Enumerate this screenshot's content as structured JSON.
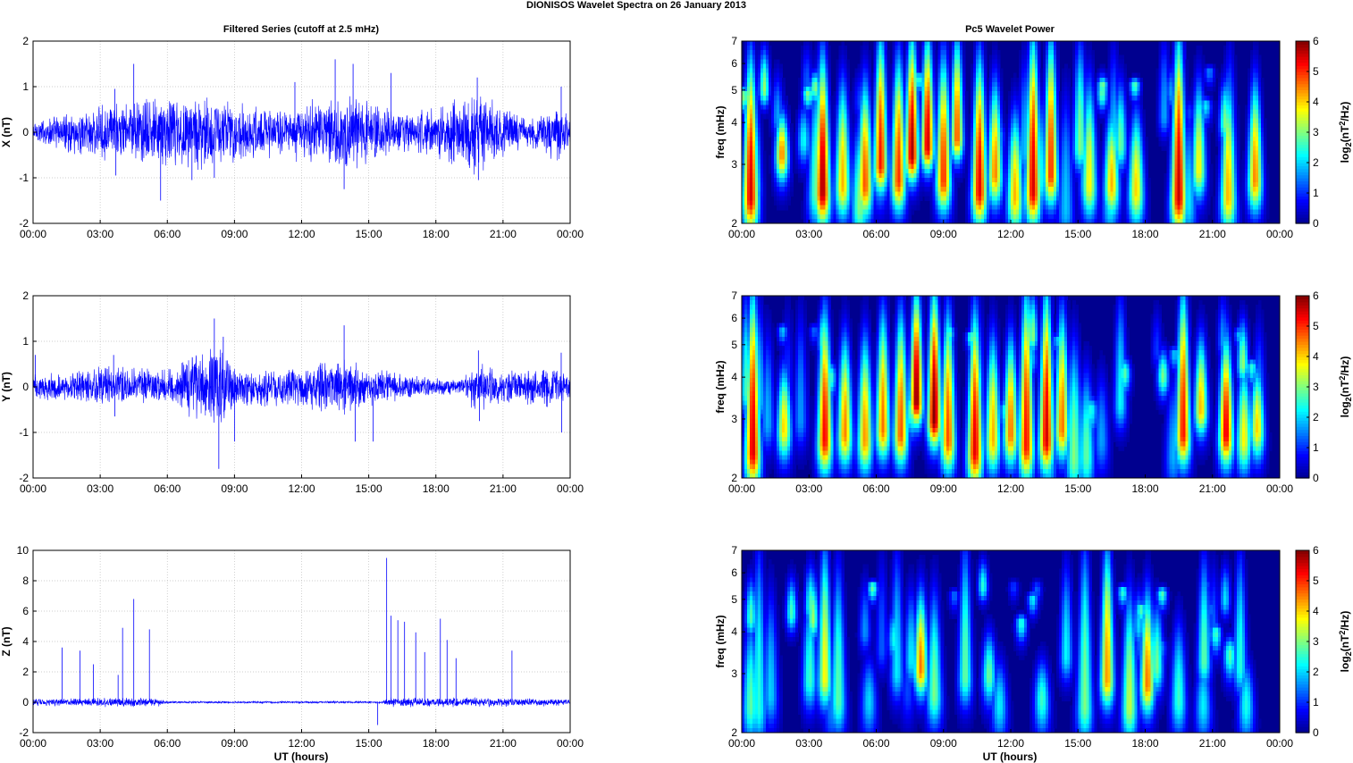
{
  "figure_title": "DIONISOS Wavelet Spectra on 26 January   2013",
  "colors": {
    "series": "#0000ff",
    "axis": "#000000",
    "grid": "#bfbfbf",
    "spectrum_background": "#00008f",
    "colormap": [
      "#00008f",
      "#0000ff",
      "#0080ff",
      "#00ffff",
      "#80ff80",
      "#ffff00",
      "#ff8000",
      "#ff0000",
      "#800000"
    ]
  },
  "chart_data": [
    {
      "type": "line",
      "title": "Filtered Series (cutoff at 2.5 mHz)",
      "xlabel": "",
      "ylabel": "X (nT)",
      "x_ticks": [
        "00:00",
        "03:00",
        "06:00",
        "09:00",
        "12:00",
        "15:00",
        "18:00",
        "21:00",
        "00:00"
      ],
      "xlim": [
        0,
        24
      ],
      "ylim": [
        -2,
        2
      ],
      "y_ticks": [
        "-2",
        "-1",
        "0",
        "1",
        "2"
      ],
      "grid": true,
      "envelope_amplitude": [
        {
          "t": 0,
          "a": 0.3
        },
        {
          "t": 3.5,
          "a": 0.7
        },
        {
          "t": 6,
          "a": 0.9
        },
        {
          "t": 8,
          "a": 0.9
        },
        {
          "t": 10,
          "a": 0.6
        },
        {
          "t": 14.5,
          "a": 0.85
        },
        {
          "t": 17,
          "a": 0.45
        },
        {
          "t": 19.8,
          "a": 1.0
        },
        {
          "t": 22,
          "a": 0.35
        },
        {
          "t": 23.6,
          "a": 0.7
        },
        {
          "t": 24,
          "a": 0.25
        }
      ],
      "spikes": [
        {
          "t": 3.65,
          "v": 0.95
        },
        {
          "t": 3.7,
          "v": -0.95
        },
        {
          "t": 4.5,
          "v": 1.5
        },
        {
          "t": 5.7,
          "v": -1.5
        },
        {
          "t": 7.1,
          "v": -1.05
        },
        {
          "t": 8.1,
          "v": -1.0
        },
        {
          "t": 11.7,
          "v": 1.1
        },
        {
          "t": 13.5,
          "v": 1.6
        },
        {
          "t": 14.3,
          "v": 1.5
        },
        {
          "t": 13.9,
          "v": -1.25
        },
        {
          "t": 16,
          "v": 1.3
        },
        {
          "t": 19.85,
          "v": 1.2
        },
        {
          "t": 19.9,
          "v": -1.05
        },
        {
          "t": 23.6,
          "v": 1.0
        }
      ]
    },
    {
      "type": "heatmap",
      "title": "Pc5 Wavelet Power",
      "xlabel": "",
      "ylabel": "freq (mHz)",
      "x_ticks": [
        "00:00",
        "03:00",
        "06:00",
        "09:00",
        "12:00",
        "15:00",
        "18:00",
        "21:00",
        "00:00"
      ],
      "xlim": [
        0,
        24
      ],
      "ylim_mHz": [
        2,
        7
      ],
      "y_ticks": [
        "2",
        "3",
        "4",
        "5",
        "6",
        "7"
      ],
      "y_scale": "log",
      "colorbar_label": "log2(nT2/Hz)",
      "colorbar_ticks": [
        "0",
        "1",
        "2",
        "3",
        "4",
        "5",
        "6"
      ],
      "colorbar_range": [
        0,
        6
      ],
      "blobs": [
        {
          "t": 0.4,
          "f": 2.4,
          "p": 5.5,
          "ft": 6
        },
        {
          "t": 1.8,
          "f": 3.2,
          "p": 4.5,
          "ft": 4
        },
        {
          "t": 3.6,
          "f": 2.5,
          "p": 5.8,
          "ft": 6
        },
        {
          "t": 4.5,
          "f": 2.6,
          "p": 4.2,
          "ft": 5
        },
        {
          "t": 5.5,
          "f": 2.6,
          "p": 4.8,
          "ft": 5
        },
        {
          "t": 6.2,
          "f": 3.0,
          "p": 5.2,
          "ft": 7
        },
        {
          "t": 7.0,
          "f": 2.7,
          "p": 5.0,
          "ft": 6
        },
        {
          "t": 7.6,
          "f": 3.2,
          "p": 5.8,
          "ft": 7
        },
        {
          "t": 8.3,
          "f": 3.4,
          "p": 5.6,
          "ft": 7
        },
        {
          "t": 9.0,
          "f": 2.7,
          "p": 5.0,
          "ft": 6
        },
        {
          "t": 9.6,
          "f": 3.6,
          "p": 4.8,
          "ft": 7
        },
        {
          "t": 10.6,
          "f": 2.5,
          "p": 5.4,
          "ft": 6
        },
        {
          "t": 11.3,
          "f": 2.8,
          "p": 4.5,
          "ft": 5
        },
        {
          "t": 12.2,
          "f": 2.4,
          "p": 4.2,
          "ft": 4
        },
        {
          "t": 13.0,
          "f": 2.5,
          "p": 5.5,
          "ft": 7
        },
        {
          "t": 13.8,
          "f": 2.8,
          "p": 5.0,
          "ft": 7
        },
        {
          "t": 15.5,
          "f": 2.6,
          "p": 3.8,
          "ft": 5
        },
        {
          "t": 16.5,
          "f": 2.6,
          "p": 4.2,
          "ft": 4
        },
        {
          "t": 17.6,
          "f": 2.5,
          "p": 4.0,
          "ft": 4
        },
        {
          "t": 19.5,
          "f": 2.4,
          "p": 5.6,
          "ft": 7
        },
        {
          "t": 20.4,
          "f": 2.9,
          "p": 3.8,
          "ft": 5
        },
        {
          "t": 21.7,
          "f": 2.4,
          "p": 4.2,
          "ft": 5
        },
        {
          "t": 22.9,
          "f": 2.7,
          "p": 4.5,
          "ft": 5
        }
      ]
    },
    {
      "type": "line",
      "title": "",
      "xlabel": "",
      "ylabel": "Y (nT)",
      "x_ticks": [
        "00:00",
        "03:00",
        "06:00",
        "09:00",
        "12:00",
        "15:00",
        "18:00",
        "21:00",
        "00:00"
      ],
      "xlim": [
        0,
        24
      ],
      "ylim": [
        -2,
        2
      ],
      "y_ticks": [
        "-2",
        "-1",
        "0",
        "1",
        "2"
      ],
      "grid": true,
      "envelope_amplitude": [
        {
          "t": 0,
          "a": 0.3
        },
        {
          "t": 3.5,
          "a": 0.5
        },
        {
          "t": 6,
          "a": 0.45
        },
        {
          "t": 8.2,
          "a": 1.1
        },
        {
          "t": 9,
          "a": 0.5
        },
        {
          "t": 12,
          "a": 0.45
        },
        {
          "t": 13.8,
          "a": 0.7
        },
        {
          "t": 16,
          "a": 0.35
        },
        {
          "t": 19,
          "a": 0.15
        },
        {
          "t": 19.8,
          "a": 0.6
        },
        {
          "t": 21,
          "a": 0.4
        },
        {
          "t": 23.5,
          "a": 0.5
        },
        {
          "t": 24,
          "a": 0.25
        }
      ],
      "spikes": [
        {
          "t": 0.1,
          "v": 0.7
        },
        {
          "t": 3.6,
          "v": 0.7
        },
        {
          "t": 3.65,
          "v": -0.65
        },
        {
          "t": 8.1,
          "v": 1.5
        },
        {
          "t": 8.3,
          "v": -1.8
        },
        {
          "t": 8.5,
          "v": 1.1
        },
        {
          "t": 9.0,
          "v": -1.2
        },
        {
          "t": 13.9,
          "v": 1.35
        },
        {
          "t": 14.4,
          "v": -1.2
        },
        {
          "t": 15.2,
          "v": -1.2
        },
        {
          "t": 19.9,
          "v": 0.8
        },
        {
          "t": 19.95,
          "v": -0.75
        },
        {
          "t": 23.6,
          "v": 0.75
        },
        {
          "t": 23.62,
          "v": -1.0
        }
      ]
    },
    {
      "type": "heatmap",
      "title": "",
      "xlabel": "",
      "ylabel": "freq (mHz)",
      "x_ticks": [
        "00:00",
        "03:00",
        "06:00",
        "09:00",
        "12:00",
        "15:00",
        "18:00",
        "21:00",
        "00:00"
      ],
      "xlim": [
        0,
        24
      ],
      "ylim_mHz": [
        2,
        7
      ],
      "y_ticks": [
        "2",
        "3",
        "4",
        "5",
        "6",
        "7"
      ],
      "y_scale": "log",
      "colorbar_label": "log2(nT2/Hz)",
      "colorbar_ticks": [
        "0",
        "1",
        "2",
        "3",
        "4",
        "5",
        "6"
      ],
      "colorbar_range": [
        0,
        6
      ],
      "blobs": [
        {
          "t": 0.5,
          "f": 2.4,
          "p": 5.5,
          "ft": 7
        },
        {
          "t": 1.9,
          "f": 2.8,
          "p": 4.0,
          "ft": 4
        },
        {
          "t": 3.7,
          "f": 2.6,
          "p": 5.3,
          "ft": 6
        },
        {
          "t": 4.6,
          "f": 2.7,
          "p": 4.5,
          "ft": 5
        },
        {
          "t": 5.5,
          "f": 2.6,
          "p": 4.4,
          "ft": 5
        },
        {
          "t": 6.3,
          "f": 2.8,
          "p": 4.6,
          "ft": 6
        },
        {
          "t": 7.1,
          "f": 2.7,
          "p": 4.8,
          "ft": 6
        },
        {
          "t": 7.8,
          "f": 3.4,
          "p": 6.0,
          "ft": 7
        },
        {
          "t": 8.6,
          "f": 3.0,
          "p": 6.0,
          "ft": 7
        },
        {
          "t": 9.2,
          "f": 2.6,
          "p": 4.8,
          "ft": 6
        },
        {
          "t": 10.4,
          "f": 2.4,
          "p": 5.4,
          "ft": 6
        },
        {
          "t": 11.2,
          "f": 2.6,
          "p": 4.2,
          "ft": 5
        },
        {
          "t": 12.0,
          "f": 2.7,
          "p": 4.6,
          "ft": 5
        },
        {
          "t": 12.7,
          "f": 2.5,
          "p": 5.2,
          "ft": 7
        },
        {
          "t": 13.6,
          "f": 2.6,
          "p": 5.5,
          "ft": 7
        },
        {
          "t": 14.3,
          "f": 2.8,
          "p": 4.6,
          "ft": 6
        },
        {
          "t": 19.7,
          "f": 2.7,
          "p": 5.2,
          "ft": 7
        },
        {
          "t": 20.5,
          "f": 3.2,
          "p": 4.2,
          "ft": 5
        },
        {
          "t": 21.6,
          "f": 2.7,
          "p": 5.4,
          "ft": 5
        },
        {
          "t": 22.4,
          "f": 2.6,
          "p": 3.8,
          "ft": 4
        },
        {
          "t": 23.0,
          "f": 2.8,
          "p": 4.0,
          "ft": 4
        }
      ]
    },
    {
      "type": "line",
      "title": "",
      "xlabel": "UT (hours)",
      "ylabel": "Z (nT)",
      "x_ticks": [
        "00:00",
        "03:00",
        "06:00",
        "09:00",
        "12:00",
        "15:00",
        "18:00",
        "21:00",
        "00:00"
      ],
      "xlim": [
        0,
        24
      ],
      "ylim": [
        -2,
        10
      ],
      "y_ticks": [
        "-2",
        "0",
        "2",
        "4",
        "6",
        "8",
        "10"
      ],
      "grid": true,
      "envelope_amplitude": [
        {
          "t": 0,
          "a": 0.25
        },
        {
          "t": 4,
          "a": 0.35
        },
        {
          "t": 5.6,
          "a": 0.3
        },
        {
          "t": 6,
          "a": 0.08
        },
        {
          "t": 15.5,
          "a": 0.08
        },
        {
          "t": 16,
          "a": 0.35
        },
        {
          "t": 19.5,
          "a": 0.35
        },
        {
          "t": 24,
          "a": 0.25
        }
      ],
      "spikes": [
        {
          "t": 1.3,
          "v": 3.6
        },
        {
          "t": 2.1,
          "v": 3.4
        },
        {
          "t": 2.7,
          "v": 2.5
        },
        {
          "t": 4.0,
          "v": 4.9
        },
        {
          "t": 4.5,
          "v": 6.8
        },
        {
          "t": 5.2,
          "v": 4.8
        },
        {
          "t": 3.8,
          "v": 1.8
        },
        {
          "t": 15.8,
          "v": 9.5
        },
        {
          "t": 16.0,
          "v": 5.7
        },
        {
          "t": 16.3,
          "v": 5.4
        },
        {
          "t": 16.6,
          "v": 5.3
        },
        {
          "t": 17.1,
          "v": 4.6
        },
        {
          "t": 17.5,
          "v": 3.3
        },
        {
          "t": 18.2,
          "v": 5.5
        },
        {
          "t": 18.5,
          "v": 4.1
        },
        {
          "t": 18.9,
          "v": 2.9
        },
        {
          "t": 21.4,
          "v": 3.4
        },
        {
          "t": 15.4,
          "v": -1.5
        }
      ]
    },
    {
      "type": "heatmap",
      "title": "",
      "xlabel": "UT (hours)",
      "ylabel": "freq (mHz)",
      "x_ticks": [
        "00:00",
        "03:00",
        "06:00",
        "09:00",
        "12:00",
        "15:00",
        "18:00",
        "21:00",
        "00:00"
      ],
      "xlim": [
        0,
        24
      ],
      "ylim_mHz": [
        2,
        7
      ],
      "y_ticks": [
        "2",
        "3",
        "4",
        "5",
        "6",
        "7"
      ],
      "y_scale": "log",
      "colorbar_label": "log2(nT2/Hz)",
      "colorbar_ticks": [
        "0",
        "1",
        "2",
        "3",
        "4",
        "5",
        "6"
      ],
      "colorbar_range": [
        0,
        6
      ],
      "blobs": [
        {
          "t": 0.4,
          "f": 2.4,
          "p": 2.8,
          "ft": 4
        },
        {
          "t": 1.3,
          "f": 2.6,
          "p": 2.0,
          "ft": 5
        },
        {
          "t": 3.7,
          "f": 2.9,
          "p": 3.8,
          "ft": 7
        },
        {
          "t": 4.3,
          "f": 2.5,
          "p": 2.8,
          "ft": 6
        },
        {
          "t": 8.0,
          "f": 3.1,
          "p": 4.6,
          "ft": 5
        },
        {
          "t": 8.6,
          "f": 2.6,
          "p": 3.0,
          "ft": 5
        },
        {
          "t": 11.5,
          "f": 2.4,
          "p": 2.2,
          "ft": 3
        },
        {
          "t": 13.4,
          "f": 2.5,
          "p": 2.6,
          "ft": 3
        },
        {
          "t": 15.3,
          "f": 2.4,
          "p": 3.0,
          "ft": 7
        },
        {
          "t": 16.3,
          "f": 2.9,
          "p": 4.4,
          "ft": 7
        },
        {
          "t": 17.3,
          "f": 2.4,
          "p": 3.4,
          "ft": 5
        },
        {
          "t": 18.1,
          "f": 2.8,
          "p": 4.6,
          "ft": 5
        },
        {
          "t": 19.5,
          "f": 2.5,
          "p": 2.6,
          "ft": 4
        },
        {
          "t": 20.6,
          "f": 2.4,
          "p": 2.2,
          "ft": 3
        },
        {
          "t": 22.5,
          "f": 2.4,
          "p": 2.4,
          "ft": 3
        }
      ]
    }
  ]
}
